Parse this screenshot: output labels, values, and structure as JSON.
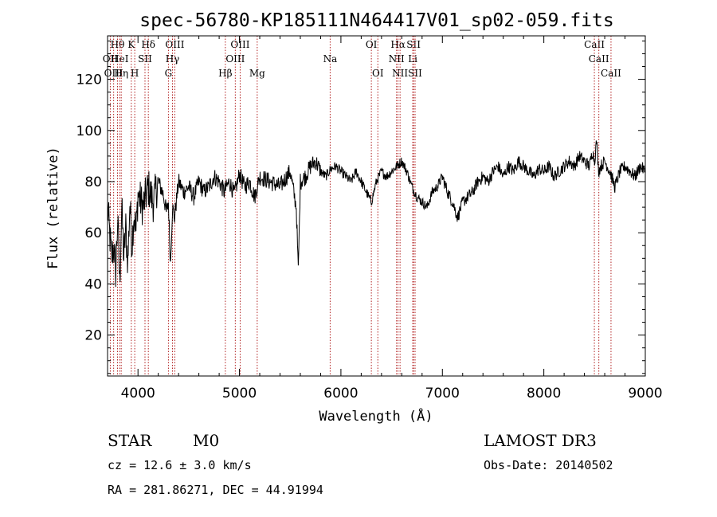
{
  "chart_data": {
    "type": "line",
    "title": "spec-56780-KP185111N464417V01_sp02-059.fits",
    "xlabel": "Wavelength (Å)",
    "ylabel": "Flux (relative)",
    "xlim": [
      3700,
      9000
    ],
    "ylim": [
      4,
      137
    ],
    "xticks": [
      4000,
      5000,
      6000,
      7000,
      8000,
      9000
    ],
    "xtick_labels": [
      "4000",
      "5000",
      "6000",
      "7000",
      "8000",
      "9000"
    ],
    "yticks": [
      20,
      40,
      60,
      80,
      100,
      120
    ],
    "ytick_labels": [
      "20",
      "40",
      "60",
      "80",
      "100",
      "120"
    ],
    "series": [
      {
        "name": "spectrum",
        "x": [
          3700,
          3720,
          3740,
          3760,
          3780,
          3800,
          3820,
          3840,
          3860,
          3880,
          3900,
          3920,
          3940,
          3960,
          3980,
          4000,
          4050,
          4100,
          4150,
          4200,
          4250,
          4280,
          4300,
          4320,
          4340,
          4360,
          4400,
          4450,
          4500,
          4550,
          4600,
          4650,
          4700,
          4750,
          4800,
          4850,
          4900,
          4950,
          5000,
          5050,
          5100,
          5150,
          5200,
          5300,
          5400,
          5500,
          5560,
          5580,
          5600,
          5650,
          5700,
          5750,
          5800,
          5850,
          5900,
          5950,
          6000,
          6050,
          6100,
          6150,
          6200,
          6250,
          6300,
          6350,
          6400,
          6450,
          6500,
          6550,
          6600,
          6650,
          6700,
          6750,
          6800,
          6850,
          6900,
          6950,
          7000,
          7050,
          7100,
          7150,
          7200,
          7250,
          7300,
          7350,
          7400,
          7450,
          7500,
          7550,
          7600,
          7650,
          7700,
          7750,
          7800,
          7850,
          7900,
          7950,
          8000,
          8050,
          8100,
          8150,
          8200,
          8250,
          8300,
          8350,
          8400,
          8450,
          8480,
          8500,
          8520,
          8540,
          8560,
          8600,
          8650,
          8700,
          8750,
          8800,
          8850,
          8900,
          8950,
          9000
        ],
        "y": [
          70,
          60,
          50,
          55,
          45,
          65,
          40,
          70,
          50,
          62,
          48,
          72,
          55,
          68,
          60,
          75,
          70,
          78,
          72,
          80,
          75,
          68,
          72,
          48,
          70,
          66,
          80,
          76,
          78,
          74,
          80,
          76,
          78,
          82,
          80,
          76,
          80,
          75,
          83,
          78,
          80,
          74,
          82,
          80,
          78,
          84,
          70,
          45,
          80,
          82,
          86,
          88,
          84,
          82,
          85,
          86,
          84,
          82,
          80,
          84,
          80,
          76,
          72,
          80,
          84,
          82,
          84,
          86,
          88,
          84,
          78,
          74,
          72,
          70,
          76,
          78,
          82,
          76,
          72,
          66,
          72,
          74,
          76,
          80,
          82,
          80,
          84,
          86,
          82,
          86,
          84,
          88,
          86,
          84,
          82,
          85,
          84,
          86,
          82,
          84,
          86,
          88,
          86,
          90,
          88,
          86,
          92,
          88,
          96,
          84,
          86,
          88,
          84,
          78,
          84,
          86,
          84,
          82,
          86,
          84
        ]
      }
    ],
    "lines": [
      {
        "label": "Hθ",
        "wavelength": 3798,
        "row": 1
      },
      {
        "label": "OII",
        "wavelength": 3727,
        "row": 2
      },
      {
        "label": "HeI",
        "wavelength": 3820,
        "row": 2
      },
      {
        "label": "OIII",
        "wavelength": 3760,
        "row": 3
      },
      {
        "label": "Hη",
        "wavelength": 3835,
        "row": 3
      },
      {
        "label": "K",
        "wavelength": 3934,
        "row": 1
      },
      {
        "label": "SII",
        "wavelength": 4069,
        "row": 2
      },
      {
        "label": "H",
        "wavelength": 3968,
        "row": 3
      },
      {
        "label": "Hδ",
        "wavelength": 4102,
        "row": 1
      },
      {
        "label": "OIII",
        "wavelength": 4363,
        "row": 1
      },
      {
        "label": "Hγ",
        "wavelength": 4340,
        "row": 2
      },
      {
        "label": "G",
        "wavelength": 4300,
        "row": 3
      },
      {
        "label": "OIII",
        "wavelength": 5007,
        "row": 1
      },
      {
        "label": "OIII",
        "wavelength": 4959,
        "row": 2
      },
      {
        "label": "Hβ",
        "wavelength": 4861,
        "row": 3
      },
      {
        "label": "Mg",
        "wavelength": 5175,
        "row": 3
      },
      {
        "label": "Na",
        "wavelength": 5894,
        "row": 2
      },
      {
        "label": "OI",
        "wavelength": 6300,
        "row": 1
      },
      {
        "label": "OI",
        "wavelength": 6364,
        "row": 3
      },
      {
        "label": "Hα",
        "wavelength": 6563,
        "row": 1
      },
      {
        "label": "SII",
        "wavelength": 6716,
        "row": 1
      },
      {
        "label": "NII",
        "wavelength": 6548,
        "row": 2
      },
      {
        "label": "Li",
        "wavelength": 6708,
        "row": 2
      },
      {
        "label": "NII",
        "wavelength": 6583,
        "row": 3
      },
      {
        "label": "SII",
        "wavelength": 6731,
        "row": 3
      },
      {
        "label": "CaII",
        "wavelength": 8498,
        "row": 1
      },
      {
        "label": "CaII",
        "wavelength": 8542,
        "row": 2
      },
      {
        "label": "CaII",
        "wavelength": 8662,
        "row": 3
      }
    ]
  },
  "info": {
    "class_label": "STAR",
    "subclass": "M0",
    "survey": "LAMOST DR3",
    "redshift_text": "cz = 12.6 ± 3.0 km/s",
    "obs_date_text": "Obs-Date: 20140502",
    "coords_text": "RA = 281.86271, DEC =  44.91994"
  }
}
